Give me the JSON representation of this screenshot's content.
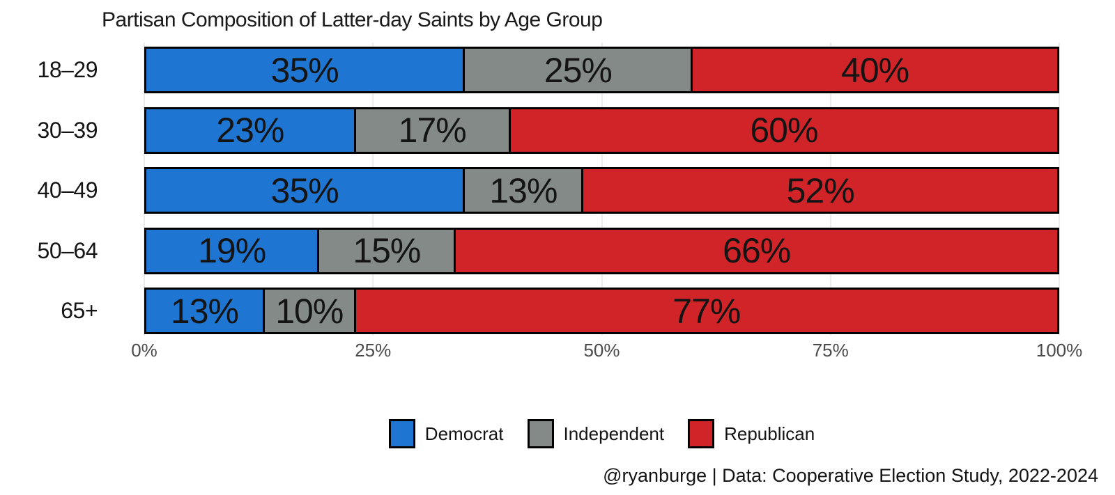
{
  "chart_data": {
    "type": "bar",
    "orientation": "horizontal",
    "stacked": true,
    "title": "Partisan Composition of Latter-day Saints by Age Group",
    "categories": [
      "18–29",
      "30–39",
      "40–49",
      "50–64",
      "65+"
    ],
    "series": [
      {
        "name": "Democrat",
        "color": "#1E76D2",
        "values": [
          35,
          23,
          35,
          19,
          13
        ]
      },
      {
        "name": "Independent",
        "color": "#848A88",
        "values": [
          25,
          17,
          13,
          15,
          10
        ]
      },
      {
        "name": "Republican",
        "color": "#D02428",
        "values": [
          40,
          60,
          52,
          66,
          77
        ]
      }
    ],
    "value_label_suffix": "%",
    "x_ticks": [
      {
        "label": "0%",
        "value": 0
      },
      {
        "label": "25%",
        "value": 25
      },
      {
        "label": "50%",
        "value": 50
      },
      {
        "label": "75%",
        "value": 75
      },
      {
        "label": "100%",
        "value": 100
      }
    ],
    "xlim": [
      0,
      100
    ],
    "grid": true,
    "grid_color": "#ececec",
    "bar_outline_color": "#000000",
    "tick_label_color": "#4a4a4a",
    "legend_position": "bottom",
    "caption": "@ryanburge | Data: Cooperative Election Study, 2022-2024"
  }
}
